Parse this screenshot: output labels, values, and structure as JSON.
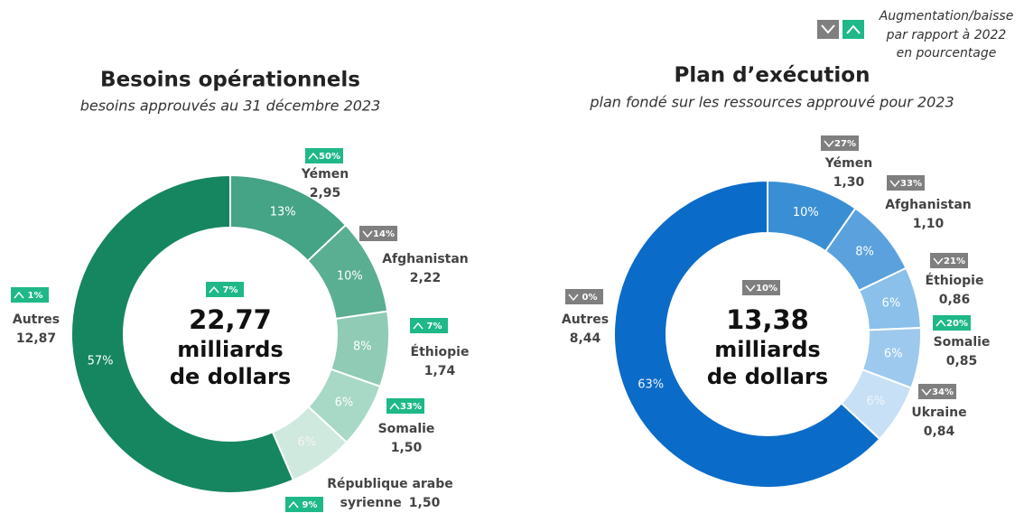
{
  "legend": {
    "lines": [
      "Augmentation/baisse",
      "par rapport à 2022",
      "en pourcentage"
    ],
    "up_color": "#1fb888",
    "down_color": "#7f7f7f"
  },
  "chart_data": [
    {
      "type": "donut",
      "title": "Besoins opérationnels",
      "subtitle": "besoins approuvés au 31 décembre 2023",
      "center_label": "22,77",
      "center_lines": [
        "milliards",
        "de dollars"
      ],
      "center_change": 7,
      "center_change_label": "7%",
      "center_change_direction": "up",
      "categories": [
        "Yémen",
        "Afghanistan",
        "Éthiopie",
        "Somalie",
        "République arabe syrienne",
        "Autres"
      ],
      "values": [
        2.95,
        2.22,
        1.74,
        1.5,
        1.5,
        12.87
      ],
      "value_labels": [
        "2,95",
        "2,22",
        "1,74",
        "1,50",
        "1,50",
        "12,87"
      ],
      "shares": [
        13,
        10,
        8,
        6,
        6,
        57
      ],
      "share_labels": [
        "13%",
        "10%",
        "8%",
        "6%",
        "6%",
        "57%"
      ],
      "changes": [
        50,
        14,
        7,
        33,
        9,
        1
      ],
      "change_labels": [
        "50%",
        "14%",
        "7%",
        "33%",
        "9%",
        "1%"
      ],
      "change_directions": [
        "up",
        "down",
        "up",
        "up",
        "up",
        "up"
      ],
      "colors": [
        "#45a386",
        "#5aae92",
        "#8fcbb5",
        "#a8d8c6",
        "#cfe9df",
        "#168660"
      ]
    },
    {
      "type": "donut",
      "title": "Plan d’exécution",
      "subtitle": "plan fondé sur les ressources approuvé pour 2023",
      "center_label": "13,38",
      "center_lines": [
        "milliards",
        "de dollars"
      ],
      "center_change": 10,
      "center_change_label": "10%",
      "center_change_direction": "down",
      "categories": [
        "Yémen",
        "Afghanistan",
        "Éthiopie",
        "Somalie",
        "Ukraine",
        "Autres"
      ],
      "values": [
        1.3,
        1.1,
        0.86,
        0.85,
        0.84,
        8.44
      ],
      "value_labels": [
        "1,30",
        "1,10",
        "0,86",
        "0,85",
        "0,84",
        "8,44"
      ],
      "shares": [
        10,
        8,
        6,
        6,
        6,
        63
      ],
      "share_labels": [
        "10%",
        "8%",
        "6%",
        "6%",
        "6%",
        "63%"
      ],
      "changes": [
        27,
        33,
        21,
        20,
        34,
        0
      ],
      "change_labels": [
        "27%",
        "33%",
        "21%",
        "20%",
        "34%",
        "0%"
      ],
      "change_directions": [
        "down",
        "down",
        "down",
        "up",
        "down",
        "down"
      ],
      "colors": [
        "#3a8fd4",
        "#5aa1dd",
        "#8ac0ea",
        "#9ec9ee",
        "#c8e0f5",
        "#0b6bc8"
      ]
    }
  ]
}
